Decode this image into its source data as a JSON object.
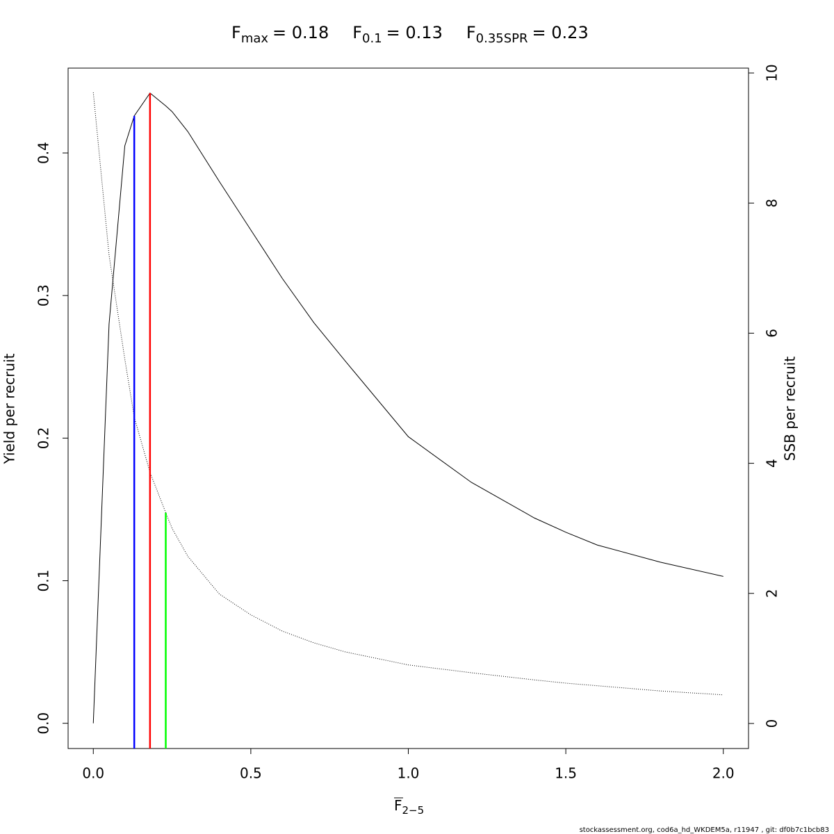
{
  "chart_data": {
    "type": "line",
    "title_parts": [
      {
        "main": "F",
        "sub": "max",
        "text": "= 0.18"
      },
      {
        "main": "F",
        "sub": "0.1",
        "text": "= 0.13"
      },
      {
        "main": "F",
        "sub": "0.35SPR",
        "text": "= 0.23"
      }
    ],
    "x_label": {
      "main": "F",
      "sub": "2−5"
    },
    "y_label": "Yield per recruit",
    "y2_label": "SSB per recruit",
    "footer": "stockassessment.org, cod6a_hd_WKDEM5a, r11947 , git: df0b7c1bcb83",
    "x": [
      0,
      0.05,
      0.1,
      0.13,
      0.18,
      0.23,
      0.25,
      0.3,
      0.4,
      0.5,
      0.6,
      0.7,
      0.8,
      1.0,
      1.2,
      1.4,
      1.5,
      1.6,
      1.8,
      2.0
    ],
    "series": [
      {
        "color": "#000000",
        "style": "solid",
        "values": [
          0,
          0.28,
          0.405,
          0.426,
          0.442,
          0.433,
          0.429,
          0.415,
          0.38,
          0.346,
          0.312,
          0.281,
          0.254,
          0.201,
          0.169,
          0.144,
          0.134,
          0.125,
          0.113,
          0.103
        ]
      },
      {
        "color": "#000000",
        "style": "dotted",
        "axis": "y2",
        "values": [
          9.7,
          7.2,
          5.6,
          4.71,
          3.86,
          3.24,
          3.0,
          2.57,
          1.99,
          1.67,
          1.42,
          1.24,
          1.1,
          0.9,
          0.78,
          0.67,
          0.62,
          0.58,
          0.5,
          0.44
        ]
      }
    ],
    "reference_lines": [
      {
        "x": 0.13,
        "top": 0.426,
        "color": "#0000ff"
      },
      {
        "x": 0.18,
        "top": 0.442,
        "color": "#ff0000"
      },
      {
        "x": 0.23,
        "top": 3.24,
        "color": "#00ff00",
        "axis": "y2"
      }
    ],
    "xlim": [
      -0.08,
      2.08
    ],
    "xticks": [
      {
        "value": 0,
        "label": "0.0"
      },
      0.5,
      {
        "value": 1,
        "label": "1.0"
      },
      1.5,
      {
        "value": 2,
        "label": "2.0"
      }
    ],
    "ylim": [
      -0.0177,
      0.4595
    ],
    "yticks": [
      {
        "value": 0,
        "label": "0.0"
      },
      0.1,
      0.2,
      0.3,
      0.4
    ],
    "y2lim": [
      -0.385,
      10.075
    ],
    "y2ticks": [
      0,
      2,
      4,
      6,
      8,
      10
    ]
  }
}
